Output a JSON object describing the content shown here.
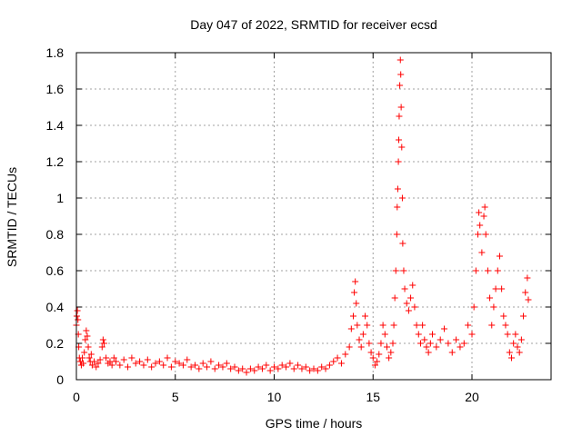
{
  "chart_data": {
    "type": "scatter",
    "title": "Day 047 of 2022, SRMTID for receiver ecsd",
    "xlabel": "GPS time / hours",
    "ylabel": "SRMTID / TECUs",
    "xlim": [
      0,
      24
    ],
    "ylim": [
      0,
      1.8
    ],
    "xticks": [
      0,
      5,
      10,
      15,
      20
    ],
    "xtick_labels": [
      "0",
      "5",
      "10",
      "15",
      "20"
    ],
    "yticks": [
      0,
      0.2,
      0.4,
      0.6,
      0.8,
      1,
      1.2,
      1.4,
      1.6,
      1.8
    ],
    "ytick_labels": [
      "0",
      "0.2",
      "0.4",
      "0.6",
      "0.8",
      "1",
      "1.2",
      "1.4",
      "1.6",
      "1.8"
    ],
    "grid": true,
    "marker": "+",
    "series": [
      {
        "name": "SRMTID",
        "color": "#ff0000",
        "points": [
          [
            0.0,
            0.3
          ],
          [
            0.02,
            0.35
          ],
          [
            0.05,
            0.38
          ],
          [
            0.08,
            0.33
          ],
          [
            0.1,
            0.25
          ],
          [
            0.12,
            0.18
          ],
          [
            0.15,
            0.12
          ],
          [
            0.2,
            0.1
          ],
          [
            0.25,
            0.08
          ],
          [
            0.3,
            0.12
          ],
          [
            0.35,
            0.09
          ],
          [
            0.4,
            0.15
          ],
          [
            0.45,
            0.22
          ],
          [
            0.5,
            0.27
          ],
          [
            0.55,
            0.24
          ],
          [
            0.6,
            0.18
          ],
          [
            0.65,
            0.12
          ],
          [
            0.7,
            0.1
          ],
          [
            0.75,
            0.14
          ],
          [
            0.8,
            0.08
          ],
          [
            0.9,
            0.1
          ],
          [
            1.0,
            0.07
          ],
          [
            1.1,
            0.09
          ],
          [
            1.2,
            0.11
          ],
          [
            1.3,
            0.18
          ],
          [
            1.35,
            0.22
          ],
          [
            1.4,
            0.2
          ],
          [
            1.5,
            0.12
          ],
          [
            1.6,
            0.09
          ],
          [
            1.7,
            0.1
          ],
          [
            1.8,
            0.08
          ],
          [
            1.9,
            0.12
          ],
          [
            2.0,
            0.1
          ],
          [
            2.2,
            0.08
          ],
          [
            2.4,
            0.11
          ],
          [
            2.6,
            0.07
          ],
          [
            2.8,
            0.12
          ],
          [
            3.0,
            0.09
          ],
          [
            3.2,
            0.1
          ],
          [
            3.4,
            0.08
          ],
          [
            3.6,
            0.11
          ],
          [
            3.8,
            0.07
          ],
          [
            4.0,
            0.09
          ],
          [
            4.2,
            0.1
          ],
          [
            4.4,
            0.08
          ],
          [
            4.6,
            0.12
          ],
          [
            4.8,
            0.07
          ],
          [
            5.0,
            0.1
          ],
          [
            5.2,
            0.09
          ],
          [
            5.4,
            0.08
          ],
          [
            5.6,
            0.11
          ],
          [
            5.8,
            0.07
          ],
          [
            6.0,
            0.08
          ],
          [
            6.2,
            0.06
          ],
          [
            6.4,
            0.09
          ],
          [
            6.6,
            0.07
          ],
          [
            6.8,
            0.1
          ],
          [
            7.0,
            0.06
          ],
          [
            7.2,
            0.08
          ],
          [
            7.4,
            0.07
          ],
          [
            7.6,
            0.09
          ],
          [
            7.8,
            0.06
          ],
          [
            8.0,
            0.07
          ],
          [
            8.2,
            0.05
          ],
          [
            8.4,
            0.06
          ],
          [
            8.6,
            0.04
          ],
          [
            8.8,
            0.06
          ],
          [
            9.0,
            0.05
          ],
          [
            9.2,
            0.07
          ],
          [
            9.4,
            0.06
          ],
          [
            9.6,
            0.08
          ],
          [
            9.8,
            0.05
          ],
          [
            10.0,
            0.07
          ],
          [
            10.2,
            0.06
          ],
          [
            10.4,
            0.08
          ],
          [
            10.6,
            0.07
          ],
          [
            10.8,
            0.09
          ],
          [
            11.0,
            0.06
          ],
          [
            11.2,
            0.08
          ],
          [
            11.4,
            0.06
          ],
          [
            11.6,
            0.07
          ],
          [
            11.8,
            0.05
          ],
          [
            12.0,
            0.06
          ],
          [
            12.2,
            0.05
          ],
          [
            12.4,
            0.07
          ],
          [
            12.6,
            0.06
          ],
          [
            12.8,
            0.08
          ],
          [
            13.0,
            0.1
          ],
          [
            13.2,
            0.12
          ],
          [
            13.4,
            0.09
          ],
          [
            13.6,
            0.14
          ],
          [
            13.8,
            0.18
          ],
          [
            13.9,
            0.28
          ],
          [
            14.0,
            0.35
          ],
          [
            14.05,
            0.48
          ],
          [
            14.1,
            0.54
          ],
          [
            14.15,
            0.42
          ],
          [
            14.2,
            0.3
          ],
          [
            14.3,
            0.22
          ],
          [
            14.4,
            0.18
          ],
          [
            14.5,
            0.25
          ],
          [
            14.6,
            0.35
          ],
          [
            14.7,
            0.3
          ],
          [
            14.8,
            0.2
          ],
          [
            14.9,
            0.15
          ],
          [
            15.0,
            0.12
          ],
          [
            15.1,
            0.08
          ],
          [
            15.2,
            0.1
          ],
          [
            15.3,
            0.14
          ],
          [
            15.4,
            0.2
          ],
          [
            15.5,
            0.3
          ],
          [
            15.6,
            0.25
          ],
          [
            15.7,
            0.18
          ],
          [
            15.8,
            0.12
          ],
          [
            15.9,
            0.15
          ],
          [
            16.0,
            0.2
          ],
          [
            16.05,
            0.3
          ],
          [
            16.1,
            0.45
          ],
          [
            16.15,
            0.6
          ],
          [
            16.2,
            0.8
          ],
          [
            16.22,
            0.95
          ],
          [
            16.25,
            1.05
          ],
          [
            16.28,
            1.2
          ],
          [
            16.3,
            1.32
          ],
          [
            16.32,
            1.45
          ],
          [
            16.35,
            1.62
          ],
          [
            16.38,
            1.76
          ],
          [
            16.4,
            1.68
          ],
          [
            16.42,
            1.5
          ],
          [
            16.45,
            1.28
          ],
          [
            16.48,
            1.0
          ],
          [
            16.5,
            0.75
          ],
          [
            16.55,
            0.6
          ],
          [
            16.6,
            0.5
          ],
          [
            16.7,
            0.42
          ],
          [
            16.8,
            0.38
          ],
          [
            16.9,
            0.45
          ],
          [
            17.0,
            0.52
          ],
          [
            17.1,
            0.4
          ],
          [
            17.2,
            0.3
          ],
          [
            17.3,
            0.25
          ],
          [
            17.4,
            0.2
          ],
          [
            17.5,
            0.3
          ],
          [
            17.6,
            0.22
          ],
          [
            17.7,
            0.18
          ],
          [
            17.8,
            0.15
          ],
          [
            17.9,
            0.2
          ],
          [
            18.0,
            0.25
          ],
          [
            18.2,
            0.18
          ],
          [
            18.4,
            0.22
          ],
          [
            18.6,
            0.28
          ],
          [
            18.8,
            0.2
          ],
          [
            19.0,
            0.15
          ],
          [
            19.2,
            0.22
          ],
          [
            19.4,
            0.18
          ],
          [
            19.6,
            0.2
          ],
          [
            19.8,
            0.3
          ],
          [
            20.0,
            0.25
          ],
          [
            20.1,
            0.4
          ],
          [
            20.2,
            0.6
          ],
          [
            20.3,
            0.8
          ],
          [
            20.35,
            0.92
          ],
          [
            20.4,
            0.85
          ],
          [
            20.5,
            0.7
          ],
          [
            20.6,
            0.9
          ],
          [
            20.65,
            0.95
          ],
          [
            20.7,
            0.8
          ],
          [
            20.8,
            0.6
          ],
          [
            20.9,
            0.45
          ],
          [
            21.0,
            0.3
          ],
          [
            21.1,
            0.4
          ],
          [
            21.2,
            0.5
          ],
          [
            21.3,
            0.6
          ],
          [
            21.4,
            0.68
          ],
          [
            21.5,
            0.5
          ],
          [
            21.6,
            0.35
          ],
          [
            21.7,
            0.3
          ],
          [
            21.8,
            0.25
          ],
          [
            21.9,
            0.15
          ],
          [
            22.0,
            0.12
          ],
          [
            22.1,
            0.2
          ],
          [
            22.2,
            0.25
          ],
          [
            22.3,
            0.18
          ],
          [
            22.4,
            0.15
          ],
          [
            22.5,
            0.22
          ],
          [
            22.6,
            0.35
          ],
          [
            22.7,
            0.48
          ],
          [
            22.8,
            0.56
          ],
          [
            22.85,
            0.44
          ]
        ]
      }
    ]
  }
}
